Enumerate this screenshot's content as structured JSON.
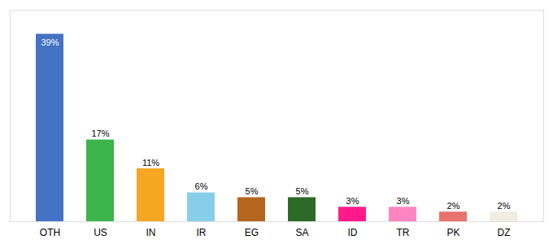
{
  "chart_data": {
    "type": "bar",
    "categories": [
      "OTH",
      "US",
      "IN",
      "IR",
      "EG",
      "SA",
      "ID",
      "TR",
      "PK",
      "DZ"
    ],
    "values": [
      39,
      17,
      11,
      6,
      5,
      5,
      3,
      3,
      2,
      2
    ],
    "value_labels": [
      "39%",
      "17%",
      "11%",
      "6%",
      "5%",
      "5%",
      "3%",
      "3%",
      "2%",
      "2%"
    ],
    "colors": [
      "#4472c4",
      "#3cb54a",
      "#f5a623",
      "#87ceeb",
      "#b5651d",
      "#2d6a27",
      "#ff1a8c",
      "#ff85c2",
      "#e8736c",
      "#f0ede0"
    ],
    "ylim": [
      0,
      44
    ],
    "grid": false,
    "data_labels": true,
    "tick_labels": "x"
  }
}
